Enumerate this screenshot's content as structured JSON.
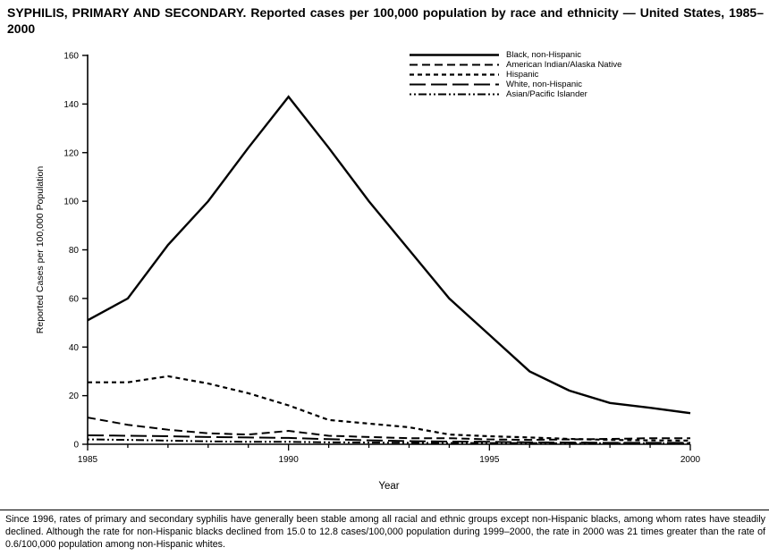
{
  "page": {
    "title": "SYPHILIS, PRIMARY AND SECONDARY. Reported cases per 100,000 population by race and ethnicity — United States, 1985–2000",
    "footnote": "Since 1996, rates of primary and secondary syphilis have generally been stable among all racial and ethnic groups except non-Hispanic blacks, among whom rates have steadily declined. Although the rate for non-Hispanic blacks declined from 15.0 to 12.8 cases/100,000 population during 1999–2000, the rate in 2000 was 21 times greater than the rate of 0.6/100,000 population among non-Hispanic whites."
  },
  "chart_data": {
    "type": "line",
    "title": "SYPHILIS, PRIMARY AND SECONDARY. Reported cases per 100,000 population by race and ethnicity — United States, 1985–2000",
    "xlabel": "Year",
    "ylabel": "Reported Cases per 100,000 Population",
    "x": [
      1985,
      1986,
      1987,
      1988,
      1989,
      1990,
      1991,
      1992,
      1993,
      1994,
      1995,
      1996,
      1997,
      1998,
      1999,
      2000
    ],
    "xlim": [
      1985,
      2000
    ],
    "ylim": [
      0,
      160
    ],
    "yticks": [
      0,
      20,
      40,
      60,
      80,
      100,
      120,
      140,
      160
    ],
    "xtick_labels": [
      "1985",
      "1990",
      "1995",
      "2000"
    ],
    "grid": false,
    "legend_position": "top-center-inside",
    "line_color": "#000000",
    "series": [
      {
        "name": "Black, non-Hispanic",
        "dash": "",
        "width": 2.4,
        "values": [
          51,
          60,
          82,
          100,
          122,
          143,
          122,
          100,
          80,
          60,
          45,
          30,
          22,
          17,
          15,
          12.8
        ]
      },
      {
        "name": "American Indian/Alaska Native",
        "dash": "9 5",
        "width": 2,
        "values": [
          11,
          8,
          6,
          4.5,
          4,
          5.5,
          3.5,
          3,
          2.5,
          2.5,
          2,
          1.8,
          2,
          2.2,
          2.5,
          2.5
        ]
      },
      {
        "name": "Hispanic",
        "dash": "5 4",
        "width": 2.2,
        "values": [
          25.5,
          25.5,
          28,
          25,
          21,
          16,
          10,
          8.5,
          7,
          4,
          3.3,
          2.8,
          2.2,
          1.8,
          1.6,
          1.5
        ]
      },
      {
        "name": "White, non-Hispanic",
        "dash": "18 6",
        "width": 2,
        "values": [
          3.7,
          3.5,
          3.3,
          3,
          2.8,
          2.6,
          2.1,
          1.6,
          1.3,
          1.1,
          1,
          0.8,
          0.7,
          0.6,
          0.6,
          0.6
        ]
      },
      {
        "name": "Asian/Pacific Islander",
        "dash": "2 3 2 3 9 3",
        "width": 2,
        "values": [
          2,
          1.8,
          1.5,
          1.2,
          1,
          1,
          0.8,
          0.7,
          0.6,
          0.5,
          0.5,
          0.5,
          0.4,
          0.4,
          0.4,
          0.4
        ]
      }
    ]
  }
}
